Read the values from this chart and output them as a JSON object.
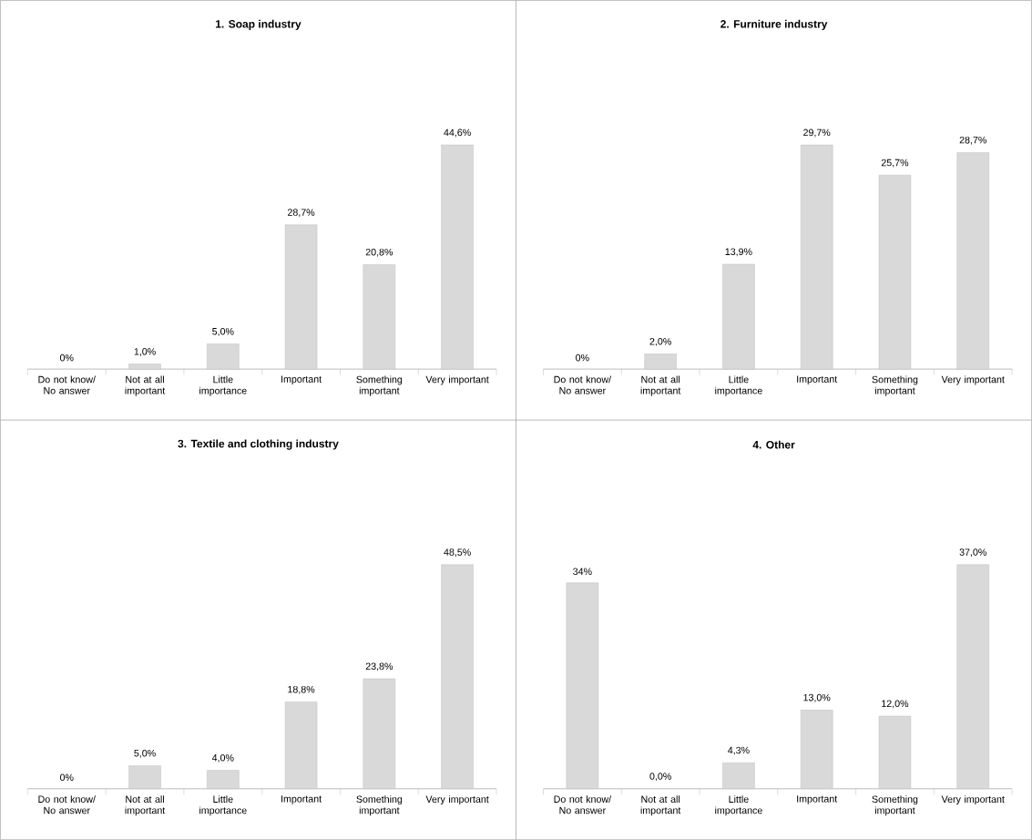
{
  "chart_data": [
    {
      "type": "bar",
      "title": "1. Soap industry",
      "categories": [
        "Do not know/ No answer",
        "Not at all important",
        "Little importance",
        "Important",
        "Something important",
        "Very important"
      ],
      "values": [
        0,
        1.0,
        5.0,
        28.7,
        20.8,
        44.6
      ],
      "value_labels": [
        "0%",
        "1,0%",
        "5,0%",
        "28,7%",
        "20,8%",
        "44,6%"
      ],
      "color": "#d9d9d9"
    },
    {
      "type": "bar",
      "title": "2. Furniture industry",
      "categories": [
        "Do not know/ No answer",
        "Not at all important",
        "Little importance",
        "Important",
        "Something important",
        "Very important"
      ],
      "values": [
        0,
        2.0,
        13.9,
        29.7,
        25.7,
        28.7
      ],
      "value_labels": [
        "0%",
        "2,0%",
        "13,9%",
        "29,7%",
        "25,7%",
        "28,7%"
      ],
      "color": "#d9d9d9"
    },
    {
      "type": "bar",
      "title": "3. Textile and clothing industry",
      "categories": [
        "Do not know/ No answer",
        "Not at all important",
        "Little importance",
        "Important",
        "Something important",
        "Very important"
      ],
      "values": [
        0,
        5.0,
        4.0,
        18.8,
        23.8,
        48.5
      ],
      "value_labels": [
        "0%",
        "5,0%",
        "4,0%",
        "18,8%",
        "23,8%",
        "48,5%"
      ],
      "color": "#d9d9d9"
    },
    {
      "type": "bar",
      "title": "4. Other",
      "categories": [
        "Do not know/ No answer",
        "Not at all important",
        "Little importance",
        "Important",
        "Something important",
        "Very important"
      ],
      "values": [
        34,
        0.0,
        4.3,
        13.0,
        12.0,
        37.0
      ],
      "value_labels": [
        "34%",
        "0,0%",
        "4,3%",
        "13,0%",
        "12,0%",
        "37,0%"
      ],
      "color": "#d9d9d9"
    }
  ]
}
